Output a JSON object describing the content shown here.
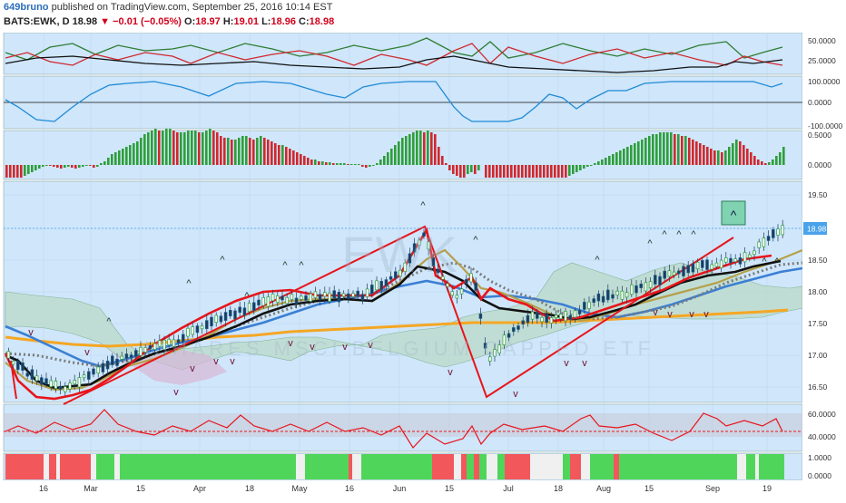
{
  "header": {
    "user": "649bruno",
    "published": "published on TradingView.com, September 25, 2016 10:14 EST",
    "symbol": "BATS:EWK, D",
    "price": "18.98",
    "arrow": "▼",
    "change": "−0.01 (−0.05%)",
    "open_label": "O:",
    "open": "18.97",
    "high_label": "H:",
    "high": "19.01",
    "low_label": "L:",
    "low": "18.96",
    "close_label": "C:",
    "close": "18.98"
  },
  "watermark": {
    "symbol": "EWK",
    "desc": "ISHARES MSCI BELGIUM CAPPED ETF"
  },
  "colors": {
    "pane_bg": "#cfe6fb",
    "up": "#2e9e3a",
    "down": "#d0282d",
    "orange": "#f5a623",
    "blue": "#3b7fd4",
    "price_tag": "#4aa3ea"
  },
  "panes": {
    "dmi": {
      "ticks": [
        "50.0000",
        "25.0000"
      ]
    },
    "cci": {
      "ticks": [
        "100.0000",
        "0.0000",
        "-100.0000"
      ]
    },
    "osc": {
      "ticks": [
        "0.5000",
        "0.0000"
      ]
    },
    "price": {
      "ticks": [
        "19.50",
        "19.00",
        "18.50",
        "18.00",
        "17.50",
        "17.00",
        "16.50"
      ],
      "last": "18.98"
    },
    "rsi": {
      "ticks": [
        "60.0000",
        "40.0000"
      ]
    },
    "signal": {
      "ticks": [
        "1.0000",
        "0.0000"
      ]
    }
  },
  "time_axis": [
    "16",
    "Mar",
    "15",
    "Apr",
    "18",
    "May",
    "16",
    "Jun",
    "15",
    "Jul",
    "18",
    "Aug",
    "15",
    "Sep",
    "19"
  ]
}
